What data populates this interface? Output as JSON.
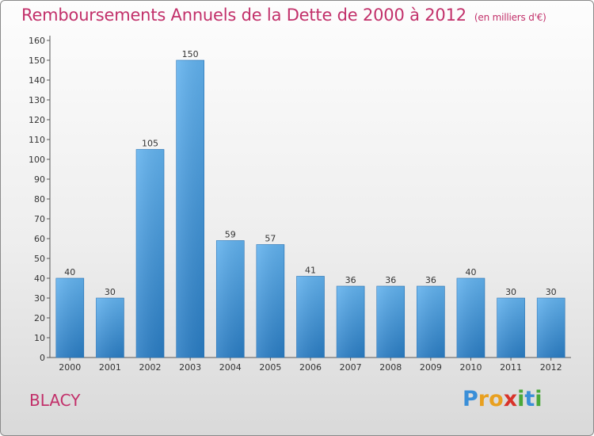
{
  "title": "Remboursements Annuels de la Dette de 2000 à 2012",
  "subtitle": "(en milliers d'€)",
  "commune": "BLACY",
  "logo": {
    "letters": [
      {
        "ch": "P",
        "color": "#3a8fd8"
      },
      {
        "ch": "r",
        "color": "#e8a020"
      },
      {
        "ch": "o",
        "color": "#e8a020"
      },
      {
        "ch": "x",
        "color": "#d8332a"
      },
      {
        "ch": "i",
        "color": "#4aa83a"
      },
      {
        "ch": "t",
        "color": "#3a8fd8"
      },
      {
        "ch": "i",
        "color": "#4aa83a"
      }
    ]
  },
  "colors": {
    "bar_light": "#62b2ee",
    "bar_dark": "#2a7dc4",
    "title": "#c2306a"
  },
  "chart_data": {
    "type": "bar",
    "categories": [
      "2000",
      "2001",
      "2002",
      "2003",
      "2004",
      "2005",
      "2006",
      "2007",
      "2008",
      "2009",
      "2010",
      "2011",
      "2012"
    ],
    "values": [
      40,
      30,
      105,
      150,
      59,
      57,
      41,
      36,
      36,
      36,
      40,
      30,
      30
    ],
    "title": "Remboursements Annuels de la Dette de 2000 à 2012",
    "subtitle": "(en milliers d'€)",
    "xlabel": "",
    "ylabel": "",
    "ylim": [
      0,
      160
    ],
    "yticks": [
      0,
      10,
      20,
      30,
      40,
      50,
      60,
      70,
      80,
      90,
      100,
      110,
      120,
      130,
      140,
      150,
      160
    ],
    "grid": false,
    "legend": "none"
  }
}
